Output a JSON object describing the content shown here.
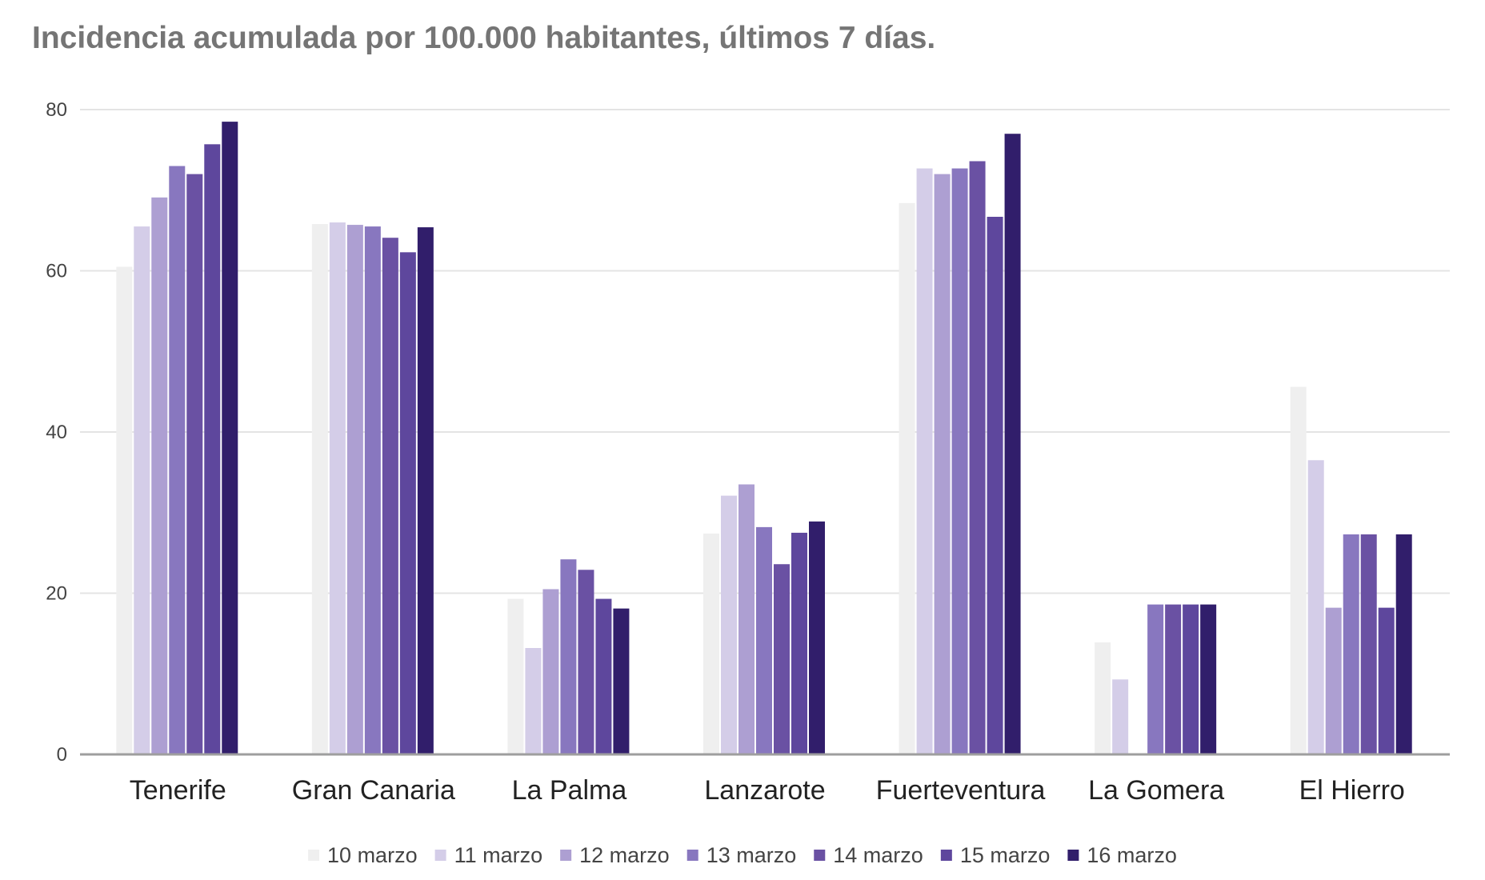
{
  "chart_data": {
    "type": "bar",
    "title": "Incidencia acumulada por 100.000 habitantes, últimos 7 días.",
    "xlabel": "",
    "ylabel": "",
    "categories": [
      "Tenerife",
      "Gran Canaria",
      "La Palma",
      "Lanzarote",
      "Fuerteventura",
      "La Gomera",
      "El Hierro"
    ],
    "yticks": [
      "0",
      "20",
      "40",
      "60",
      "80"
    ],
    "ylim": [
      0,
      80
    ],
    "grid": true,
    "legend_position": "bottom",
    "series": [
      {
        "name": "10 marzo",
        "color": "#efefef",
        "values": [
          60.5,
          65.8,
          19.3,
          27.4,
          68.4,
          13.9,
          45.6
        ]
      },
      {
        "name": "11 marzo",
        "color": "#d4cde8",
        "values": [
          65.5,
          66.0,
          13.2,
          32.1,
          72.7,
          9.3,
          36.5
        ]
      },
      {
        "name": "12 marzo",
        "color": "#ad9fd2",
        "values": [
          69.1,
          65.7,
          20.5,
          33.5,
          72.0,
          0,
          18.2
        ]
      },
      {
        "name": "13 marzo",
        "color": "#8877bf",
        "values": [
          73.0,
          65.5,
          24.2,
          28.2,
          72.7,
          18.6,
          27.3
        ]
      },
      {
        "name": "14 marzo",
        "color": "#6a51a3",
        "values": [
          72.0,
          64.1,
          22.9,
          23.6,
          73.6,
          18.6,
          27.3
        ]
      },
      {
        "name": "15 marzo",
        "color": "#5e479d",
        "values": [
          75.7,
          62.3,
          19.3,
          27.5,
          66.7,
          18.6,
          18.2
        ]
      },
      {
        "name": "16 marzo",
        "color": "#311e6b",
        "values": [
          78.5,
          65.4,
          18.1,
          28.9,
          77.0,
          18.6,
          27.3
        ]
      }
    ]
  }
}
